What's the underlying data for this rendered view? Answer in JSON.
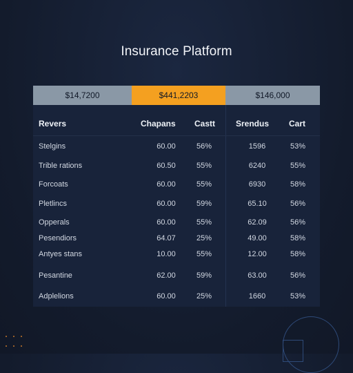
{
  "title": "Insurance Platform",
  "summary": [
    "$14,7200",
    "$441,2203",
    "$146,000"
  ],
  "headers": [
    "Revers",
    "Chapans",
    "Castt",
    "Srendus",
    "Cart"
  ],
  "rows": [
    {
      "label": "Stelgins",
      "v1": "60.00",
      "v2": "56%",
      "v3": "1596",
      "v4": "53%"
    },
    {
      "label": "Trible rations",
      "v1": "60.50",
      "v2": "55%",
      "v3": "6240",
      "v4": "55%"
    },
    {
      "label": "Forcoats",
      "v1": "60.00",
      "v2": "55%",
      "v3": "6930",
      "v4": "58%"
    },
    {
      "label": "Pletlincs",
      "v1": "60.00",
      "v2": "59%",
      "v3": "65.10",
      "v4": "56%"
    },
    {
      "label": "Opperals",
      "v1": "60.00",
      "v2": "55%",
      "v3": "62.09",
      "v4": "56%"
    },
    {
      "label": "Pesendiors",
      "v1": "64.07",
      "v2": "25%",
      "v3": "49.00",
      "v4": "58%"
    },
    {
      "label": "Antyes stans",
      "v1": "10.00",
      "v2": "55%",
      "v3": "12.00",
      "v4": "58%"
    },
    {
      "label": "Pesantine",
      "v1": "62.00",
      "v2": "59%",
      "v3": "63.00",
      "v4": "56%"
    },
    {
      "label": "Adplelions",
      "v1": "60.00",
      "v2": "25%",
      "v3": "1660",
      "v4": "53%"
    }
  ],
  "colors": {
    "background": "#141d2f",
    "panel": "#18233a",
    "summary_gray": "#8a98a6",
    "summary_accent": "#f4a020"
  }
}
